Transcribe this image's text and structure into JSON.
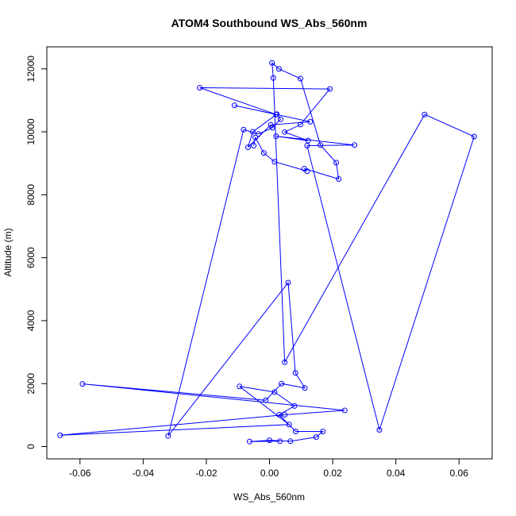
{
  "chart_data": {
    "type": "line",
    "title": "ATOM4 Southbound WS_Abs_560nm",
    "xlabel": "WS_Abs_560nm",
    "ylabel": "Altitude (m)",
    "xlim": [
      -0.0705,
      0.0705
    ],
    "ylim": [
      -390,
      12700
    ],
    "xticks": [
      -0.06,
      -0.04,
      -0.02,
      0.0,
      0.02,
      0.04,
      0.06
    ],
    "xtick_labels": [
      "-0.06",
      "-0.04",
      "-0.02",
      "0.00",
      "0.02",
      "0.04",
      "0.06"
    ],
    "yticks": [
      0,
      2000,
      4000,
      6000,
      8000,
      10000,
      12000
    ],
    "ytick_labels": [
      "0",
      "2000",
      "4000",
      "6000",
      "8000",
      "10000",
      "12000"
    ],
    "grid": false,
    "color": "#0000ff",
    "markers": "open-circle",
    "series": [
      {
        "x": [
          0.0033,
          -0.0063,
          0.0,
          0.0066,
          0.0148,
          0.0169,
          0.0083,
          0.0031,
          0.0079,
          0.0016,
          -0.0095,
          0.0062,
          -0.0663,
          0.0048,
          0.0238,
          -0.0592,
          -0.0012,
          0.0038,
          0.0112,
          0.0082,
          0.0059,
          -0.0321,
          -0.0082,
          -0.0035,
          0.0009,
          0.0035,
          0.0023,
          -0.0053,
          -0.0068,
          0.0004,
          0.0129,
          -0.0111,
          0.0021,
          -0.0221,
          0.0191,
          0.0098,
          0.0048,
          0.0122,
          0.0021,
          0.0269,
          0.0119,
          0.0348,
          0.0648,
          0.0491,
          0.0048,
          0.0012,
          0.0008,
          0.003,
          0.0098,
          0.0161,
          0.0211,
          0.0219,
          0.011,
          0.0119,
          0.0016,
          -0.0018,
          -0.0045,
          -0.005
        ],
        "y": [
          170,
          160,
          200,
          170,
          300,
          480,
          480,
          1010,
          1290,
          1730,
          1910,
          700,
          360,
          1010,
          1150,
          1990,
          1470,
          2000,
          1860,
          2340,
          5210,
          340,
          10070,
          9930,
          10130,
          10400,
          10560,
          10000,
          9510,
          10220,
          10320,
          10840,
          10550,
          11400,
          11360,
          10230,
          9990,
          9720,
          9860,
          9580,
          9560,
          530,
          9850,
          10550,
          2680,
          11710,
          12190,
          12000,
          11690,
          9580,
          9020,
          8500,
          8830,
          8750,
          9050,
          9330,
          9820,
          9560
        ]
      }
    ]
  }
}
